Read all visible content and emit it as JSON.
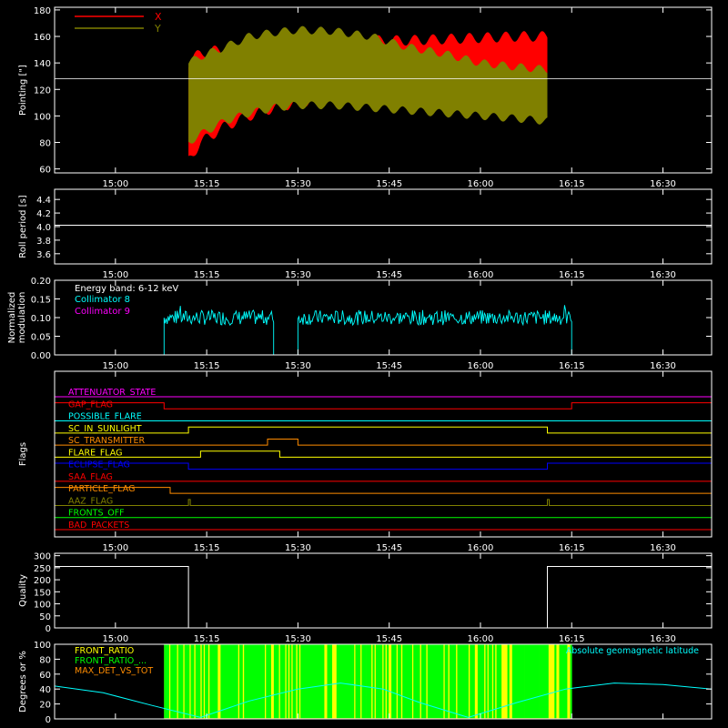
{
  "colors": {
    "background": "#000000",
    "axis": "#ffffff",
    "red": "#ff0000",
    "olive": "#808000",
    "cyan": "#00ffff",
    "magenta": "#ff00ff",
    "green": "#00ff00",
    "orange": "#ff8c00",
    "yellow": "#ffff00",
    "blue": "#0000ff",
    "white": "#ffffff"
  },
  "chart_data": [
    {
      "type": "area",
      "id": "pointing",
      "ylabel": "Pointing [\"]",
      "xlim": [
        "14:50",
        "16:38"
      ],
      "ylim": [
        57,
        182
      ],
      "yticks": [
        60,
        80,
        100,
        120,
        140,
        160,
        180
      ],
      "xticks": [
        "15:00",
        "15:15",
        "15:30",
        "15:45",
        "16:00",
        "16:15",
        "16:30"
      ],
      "reference_line": 128,
      "legend": {
        "placement": "top-left",
        "entries": [
          "X",
          "Y"
        ]
      },
      "series": [
        {
          "name": "X",
          "color": "red",
          "time": [
            "15:12",
            "15:14",
            "15:18",
            "15:22",
            "15:26",
            "15:30",
            "15:36",
            "15:42",
            "15:48",
            "15:54",
            "16:00",
            "16:06",
            "16:11"
          ],
          "max": [
            140,
            148,
            150,
            152,
            154,
            155,
            156,
            157,
            157,
            158,
            159,
            160,
            160
          ],
          "min": [
            66,
            80,
            92,
            100,
            106,
            110,
            114,
            116,
            118,
            120,
            121,
            122,
            122
          ]
        },
        {
          "name": "Y",
          "color": "olive",
          "time": [
            "15:12",
            "15:14",
            "15:18",
            "15:22",
            "15:26",
            "15:30",
            "15:36",
            "15:42",
            "15:48",
            "15:54",
            "16:00",
            "16:06",
            "16:11"
          ],
          "max": [
            140,
            145,
            152,
            160,
            163,
            165,
            164,
            160,
            152,
            147,
            140,
            137,
            135
          ],
          "min": [
            80,
            86,
            96,
            102,
            106,
            108,
            108,
            106,
            104,
            102,
            100,
            98,
            96
          ]
        }
      ]
    },
    {
      "type": "line",
      "id": "roll",
      "ylabel": "Roll period [s]",
      "xlim": [
        "14:50",
        "16:38"
      ],
      "ylim": [
        3.45,
        4.55
      ],
      "yticks": [
        3.6,
        3.8,
        4.0,
        4.2,
        4.4
      ],
      "ytick_labels": [
        "3.6",
        "3.8",
        "4.0",
        "4.2",
        "4.4"
      ],
      "xticks": [
        "15:00",
        "15:15",
        "15:30",
        "15:45",
        "16:00",
        "16:15",
        "16:30"
      ],
      "series": [
        {
          "color": "white",
          "time": [
            "14:50",
            "16:38"
          ],
          "values": [
            4.02,
            4.02
          ]
        }
      ]
    },
    {
      "type": "line",
      "id": "modulation",
      "ylabel": "Normalized modulation",
      "ylabel_lines": [
        "Normalized",
        "modulation"
      ],
      "xlim": [
        "14:50",
        "16:38"
      ],
      "ylim": [
        0,
        0.2
      ],
      "yticks": [
        0,
        0.05,
        0.1,
        0.15,
        0.2
      ],
      "ytick_labels": [
        "0.00",
        "0.05",
        "0.10",
        "0.15",
        "0.20"
      ],
      "xticks": [
        "15:00",
        "15:15",
        "15:30",
        "15:45",
        "16:00",
        "16:15",
        "16:30"
      ],
      "legend": {
        "placement": "top-left",
        "title": "Energy band: 6-12 keV",
        "entries": [
          "Collimator 8",
          "Collimator 9"
        ]
      },
      "series": [
        {
          "name": "Collimator 8",
          "color": "cyan",
          "segments": [
            [
              "15:08",
              "15:26"
            ],
            [
              "15:30",
              "16:15"
            ]
          ],
          "mean": 0.1,
          "spread": 0.02,
          "max_spike": 0.17
        },
        {
          "name": "Collimator 9",
          "color": "magenta",
          "time": [
            "14:50",
            "16:38"
          ],
          "values": [
            0,
            0
          ]
        }
      ]
    },
    {
      "type": "line",
      "id": "flags",
      "ylabel": "Flags",
      "xlim": [
        "14:50",
        "16:38"
      ],
      "xticks": [
        "15:00",
        "15:15",
        "15:30",
        "15:45",
        "16:00",
        "16:15",
        "16:30"
      ],
      "step_height": 0.6,
      "flags": [
        {
          "name": "ATTENUATOR_STATE",
          "color": "magenta",
          "on": []
        },
        {
          "name": "GAP_FLAG",
          "color": "red",
          "on": [
            [
              "14:50",
              "15:08"
            ],
            [
              "16:15",
              "16:38"
            ]
          ]
        },
        {
          "name": "POSSIBLE_FLARE",
          "color": "cyan",
          "on": []
        },
        {
          "name": "SC_IN_SUNLIGHT",
          "color": "yellow",
          "on": [
            [
              "15:12",
              "16:11"
            ]
          ]
        },
        {
          "name": "SC_TRANSMITTER",
          "color": "orange",
          "on": [
            [
              "15:25",
              "15:30"
            ]
          ]
        },
        {
          "name": "FLARE_FLAG",
          "color": "yellow",
          "on": [
            [
              "15:14",
              "15:27"
            ]
          ]
        },
        {
          "name": "ECLIPSE_FLAG",
          "color": "blue",
          "on": [
            [
              "14:50",
              "15:12"
            ],
            [
              "16:11",
              "16:38"
            ]
          ]
        },
        {
          "name": "SAA_FLAG",
          "color": "red",
          "on": []
        },
        {
          "name": "PARTICLE_FLAG",
          "color": "orange",
          "on": [
            [
              "14:50",
              "15:09"
            ]
          ]
        },
        {
          "name": "AAZ_FLAG",
          "color": "olive",
          "on": [
            [
              "15:12",
              "15:12"
            ],
            [
              "16:11",
              "16:11"
            ]
          ]
        },
        {
          "name": "FRONTS_OFF",
          "color": "green",
          "on": []
        },
        {
          "name": "BAD_PACKETS",
          "color": "red",
          "on": []
        }
      ]
    },
    {
      "type": "line",
      "id": "quality",
      "ylabel": "Quality",
      "xlim": [
        "14:50",
        "16:38"
      ],
      "ylim": [
        0,
        310
      ],
      "yticks": [
        0,
        50,
        100,
        150,
        200,
        250,
        300
      ],
      "xticks": [
        "15:00",
        "15:15",
        "15:30",
        "15:45",
        "16:00",
        "16:15",
        "16:30"
      ],
      "series": [
        {
          "color": "white",
          "time": [
            "14:50",
            "15:12",
            "15:12",
            "16:11",
            "16:11",
            "16:38"
          ],
          "values": [
            255,
            255,
            0,
            0,
            255,
            255
          ]
        }
      ]
    },
    {
      "type": "line",
      "id": "ratios",
      "ylabel": "Degrees or %",
      "xlim": [
        "14:50",
        "16:38"
      ],
      "ylim": [
        0,
        100
      ],
      "yticks": [
        0,
        20,
        40,
        60,
        80,
        100
      ],
      "legend": {
        "placement": "top-left",
        "entries": [
          "FRONT_RATIO",
          "FRONT_RATIO_...",
          "MAX_DET_VS_TOT"
        ],
        "right_entry": "Absolute geomagnetic latitude"
      },
      "series": [
        {
          "name": "FRONT_RATIO",
          "color": "yellow",
          "segment": [
            "15:08",
            "16:15"
          ],
          "values": [
            100
          ]
        },
        {
          "name": "FRONT_RATIO_...",
          "color": "green",
          "segment": [
            "15:08",
            "16:15"
          ],
          "values": [
            100
          ]
        },
        {
          "name": "MAX_DET_VS_TOT",
          "color": "orange",
          "segment": [
            "15:08",
            "16:15"
          ],
          "values": [
            0
          ]
        },
        {
          "name": "Absolute geomagnetic latitude",
          "color": "cyan",
          "time": [
            "14:50",
            "14:58",
            "15:06",
            "15:14",
            "15:22",
            "15:30",
            "15:37",
            "15:44",
            "15:50",
            "15:58",
            "16:06",
            "16:14",
            "16:22",
            "16:30",
            "16:38"
          ],
          "values": [
            44,
            35,
            18,
            2,
            24,
            40,
            48,
            40,
            22,
            2,
            22,
            40,
            48,
            46,
            40
          ]
        }
      ]
    }
  ]
}
